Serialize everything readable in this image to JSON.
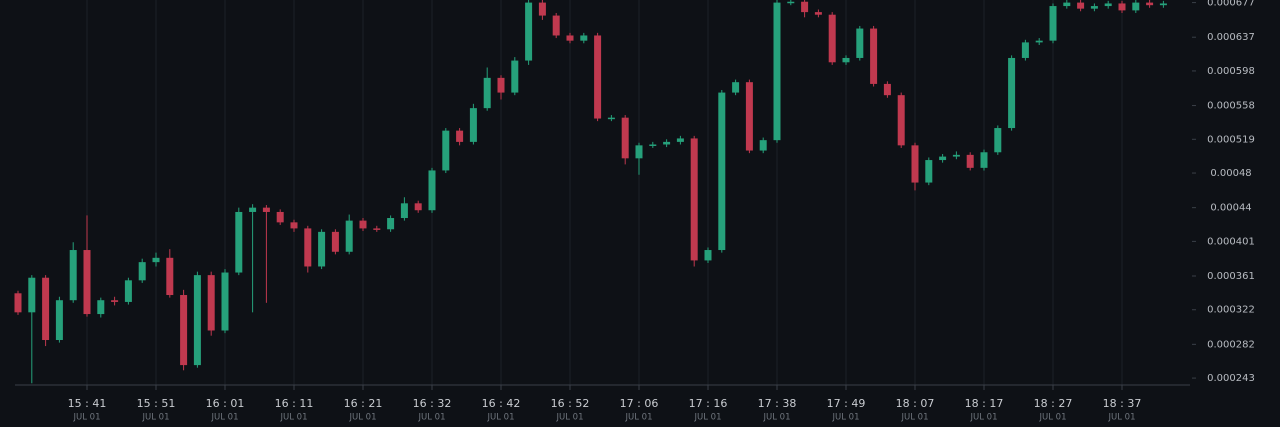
{
  "chart_data": {
    "type": "candlestick",
    "up_color": "#26a17b",
    "down_color": "#c0394f",
    "grid": "x",
    "ylim": [
      0.000235,
      0.00068
    ],
    "yticks": [
      0.000243,
      0.000282,
      0.000322,
      0.000361,
      0.000401,
      0.00044,
      0.00048,
      0.000519,
      0.000558,
      0.000598,
      0.000637,
      0.000677
    ],
    "xticks": [
      {
        "value": 5,
        "label": "15 : 41"
      },
      {
        "value": 10,
        "label": "15 : 51"
      },
      {
        "value": 15,
        "label": "16 : 01"
      },
      {
        "value": 20,
        "label": "16 : 11"
      },
      {
        "value": 25,
        "label": "16 : 21"
      },
      {
        "value": 30,
        "label": "16 : 32"
      },
      {
        "value": 35,
        "label": "16 : 42"
      },
      {
        "value": 40,
        "label": "16 : 52"
      },
      {
        "value": 45,
        "label": "17 : 06"
      },
      {
        "value": 50,
        "label": "17 : 16"
      },
      {
        "value": 55,
        "label": "17 : 38"
      },
      {
        "value": 60,
        "label": "17 : 49"
      },
      {
        "value": 65,
        "label": "18 : 07"
      },
      {
        "value": 70,
        "label": "18 : 17"
      },
      {
        "value": 75,
        "label": "18 : 27"
      },
      {
        "value": 80,
        "label": "18 : 37"
      }
    ],
    "xtick_date": "JUL 01",
    "open": [
      0.000341,
      0.000319,
      0.000359,
      0.000287,
      0.000333,
      0.000391,
      0.000317,
      0.000333,
      0.000331,
      0.000356,
      0.000377,
      0.000382,
      0.000339,
      0.000258,
      0.000362,
      0.000298,
      0.000365,
      0.000435,
      0.00044,
      0.000435,
      0.000423,
      0.000416,
      0.000372,
      0.000412,
      0.000389,
      0.000425,
      0.000416,
      0.000415,
      0.000428,
      0.000445,
      0.000437,
      0.000483,
      0.000529,
      0.000516,
      0.000555,
      0.00059,
      0.000573,
      0.00061,
      0.000677,
      0.000662,
      0.000639,
      0.000633,
      0.000639,
      0.000543,
      0.000544,
      0.000497,
      0.000512,
      0.000513,
      0.000516,
      0.00052,
      0.000379,
      0.000391,
      0.000573,
      0.000585,
      0.000506,
      0.000518,
      0.000677,
      0.000678,
      0.000666,
      0.000663,
      0.000608,
      0.000613,
      0.000647,
      0.000583,
      0.00057,
      0.000512,
      0.000469,
      0.000495,
      0.000499,
      0.000501,
      0.000486,
      0.000504,
      0.000532,
      0.000613,
      0.000631,
      0.000633,
      0.000673,
      0.000677,
      0.00067,
      0.000673,
      0.000676,
      0.000668,
      0.000677,
      0.000674
    ],
    "high": [
      0.000344,
      0.000362,
      0.000362,
      0.000337,
      0.0004,
      0.000431,
      0.000336,
      0.000337,
      0.000359,
      0.000381,
      0.000388,
      0.000392,
      0.000345,
      0.000366,
      0.000366,
      0.000369,
      0.00044,
      0.000444,
      0.000443,
      0.000438,
      0.000426,
      0.000419,
      0.000415,
      0.000415,
      0.000432,
      0.000428,
      0.000419,
      0.000431,
      0.000452,
      0.000448,
      0.000486,
      0.000532,
      0.000532,
      0.00056,
      0.000602,
      0.000593,
      0.000614,
      0.00068,
      0.00068,
      0.000665,
      0.000642,
      0.000642,
      0.000642,
      0.000547,
      0.000547,
      0.000515,
      0.000516,
      0.000519,
      0.000523,
      0.000523,
      0.000394,
      0.000576,
      0.000588,
      0.000588,
      0.000521,
      0.00068,
      0.00068,
      0.00068,
      0.000669,
      0.000666,
      0.000616,
      0.00065,
      0.00065,
      0.000586,
      0.000573,
      0.000515,
      0.000498,
      0.000502,
      0.000505,
      0.000504,
      0.000507,
      0.000535,
      0.000616,
      0.000634,
      0.000636,
      0.000676,
      0.00068,
      0.00068,
      0.000676,
      0.000679,
      0.000679,
      0.00068,
      0.00068,
      0.000679
    ],
    "low": [
      0.000316,
      0.000237,
      0.00028,
      0.000284,
      0.00033,
      0.000314,
      0.000313,
      0.000327,
      0.000328,
      0.000353,
      0.000372,
      0.000336,
      0.000252,
      0.000255,
      0.000292,
      0.000295,
      0.000362,
      0.000319,
      0.00033,
      0.00042,
      0.000412,
      0.000365,
      0.000369,
      0.000386,
      0.000386,
      0.000413,
      0.000412,
      0.000412,
      0.000425,
      0.000434,
      0.000434,
      0.00048,
      0.000512,
      0.000513,
      0.000552,
      0.000565,
      0.00057,
      0.000605,
      0.000657,
      0.000636,
      0.00063,
      0.00063,
      0.00054,
      0.00054,
      0.00049,
      0.000478,
      0.000509,
      0.00051,
      0.000513,
      0.000372,
      0.000376,
      0.000388,
      0.00057,
      0.000503,
      0.000503,
      0.000515,
      0.000674,
      0.00066,
      0.00066,
      0.000605,
      0.000605,
      0.00061,
      0.00058,
      0.000567,
      0.000509,
      0.00046,
      0.000466,
      0.000492,
      0.000496,
      0.000483,
      0.000483,
      0.000501,
      0.000529,
      0.00061,
      0.000628,
      0.00063,
      0.00067,
      0.000667,
      0.000667,
      0.00067,
      0.000665,
      0.000665,
      0.000671,
      0.000671
    ],
    "close": [
      0.000319,
      0.000359,
      0.000287,
      0.000333,
      0.000391,
      0.000317,
      0.000333,
      0.000331,
      0.000356,
      0.000377,
      0.000382,
      0.000339,
      0.000258,
      0.000362,
      0.000298,
      0.000365,
      0.000435,
      0.00044,
      0.000435,
      0.000423,
      0.000416,
      0.000372,
      0.000412,
      0.000389,
      0.000425,
      0.000416,
      0.000415,
      0.000428,
      0.000445,
      0.000437,
      0.000483,
      0.000529,
      0.000516,
      0.000555,
      0.00059,
      0.000573,
      0.00061,
      0.000677,
      0.000662,
      0.000639,
      0.000633,
      0.000639,
      0.000543,
      0.000544,
      0.000497,
      0.000512,
      0.000513,
      0.000516,
      0.00052,
      0.000379,
      0.000391,
      0.000573,
      0.000585,
      0.000506,
      0.000518,
      0.000677,
      0.000678,
      0.000666,
      0.000663,
      0.000608,
      0.000613,
      0.000647,
      0.000583,
      0.00057,
      0.000512,
      0.000469,
      0.000495,
      0.000499,
      0.000501,
      0.000486,
      0.000504,
      0.000532,
      0.000613,
      0.000631,
      0.000633,
      0.000673,
      0.000677,
      0.00067,
      0.000673,
      0.000676,
      0.000668,
      0.000677,
      0.000674,
      0.000676
    ]
  }
}
